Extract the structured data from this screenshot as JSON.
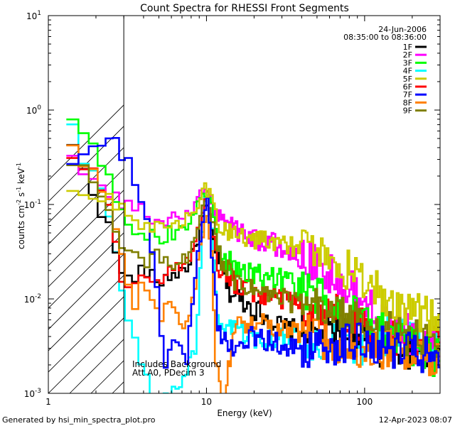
{
  "chart_data": {
    "type": "line",
    "title": "Count Spectra for RHESSI Front Segments",
    "xlabel": "Energy (keV)",
    "ylabel": "counts cm-2 s-1 keV-1",
    "x_scale": "log",
    "y_scale": "log",
    "xlim": [
      1,
      300
    ],
    "ylim": [
      0.001,
      10
    ],
    "x_tick_labels": [
      {
        "value": 1,
        "label": "1"
      },
      {
        "value": 10,
        "label": "10"
      },
      {
        "value": 100,
        "label": "100"
      }
    ],
    "y_tick_labels": [
      {
        "value": 0.001,
        "base": "10",
        "exp": "-3"
      },
      {
        "value": 0.01,
        "base": "10",
        "exp": "-2"
      },
      {
        "value": 0.1,
        "base": "10",
        "exp": "-1"
      },
      {
        "value": 1,
        "base": "10",
        "exp": "0"
      },
      {
        "value": 10,
        "base": "10",
        "exp": "1"
      }
    ],
    "date": "24-Jun-2006",
    "time_range": "08:35:00 to 08:36:00",
    "hatched_region_xlim": [
      1,
      3
    ],
    "annotation_lines": [
      "Includes Background",
      "Att A0, PDecim 3"
    ],
    "footer_left": "Generated by hsi_min_spectra_plot.pro",
    "footer_right": "12-Apr-2023 08:07",
    "series": [
      {
        "name": "1F",
        "color": "#000000"
      },
      {
        "name": "2F",
        "color": "#ff00ff"
      },
      {
        "name": "3F",
        "color": "#00ff00"
      },
      {
        "name": "4F",
        "color": "#00ffff"
      },
      {
        "name": "5F",
        "color": "#cccc00"
      },
      {
        "name": "6F",
        "color": "#ff0000"
      },
      {
        "name": "7F",
        "color": "#0000ff"
      },
      {
        "name": "8F",
        "color": "#ff8000"
      },
      {
        "name": "9F",
        "color": "#808000"
      }
    ],
    "anchors": {
      "1F": [
        [
          1.3,
          0.5
        ],
        [
          1.6,
          0.28
        ],
        [
          2.0,
          0.12
        ],
        [
          2.5,
          0.05
        ],
        [
          3.0,
          0.015
        ],
        [
          4.0,
          0.02
        ],
        [
          5.0,
          0.015
        ],
        [
          6.0,
          0.018
        ],
        [
          7.0,
          0.02
        ],
        [
          8.0,
          0.025
        ],
        [
          9.0,
          0.05
        ],
        [
          10.0,
          0.1
        ],
        [
          10.6,
          0.06
        ],
        [
          11.5,
          0.03
        ],
        [
          14,
          0.012
        ],
        [
          20,
          0.008
        ],
        [
          30,
          0.005
        ],
        [
          50,
          0.004
        ],
        [
          80,
          0.004
        ],
        [
          120,
          0.003
        ],
        [
          200,
          0.003
        ],
        [
          300,
          0.0025
        ]
      ],
      "2F": [
        [
          1.3,
          0.5
        ],
        [
          2.0,
          0.15
        ],
        [
          3.0,
          0.1
        ],
        [
          4.0,
          0.09
        ],
        [
          5.0,
          0.06
        ],
        [
          6.0,
          0.07
        ],
        [
          8.0,
          0.08
        ],
        [
          10.0,
          0.16
        ],
        [
          11.0,
          0.09
        ],
        [
          12.5,
          0.07
        ],
        [
          15,
          0.055
        ],
        [
          20,
          0.045
        ],
        [
          30,
          0.035
        ],
        [
          50,
          0.022
        ],
        [
          70,
          0.016
        ],
        [
          100,
          0.01
        ],
        [
          150,
          0.007
        ],
        [
          200,
          0.004
        ],
        [
          300,
          0.0025
        ]
      ],
      "3F": [
        [
          1.3,
          1.1
        ],
        [
          1.6,
          0.6
        ],
        [
          2.0,
          0.4
        ],
        [
          2.5,
          0.18
        ],
        [
          3.0,
          0.07
        ],
        [
          4.0,
          0.045
        ],
        [
          5.0,
          0.045
        ],
        [
          6.0,
          0.05
        ],
        [
          8.0,
          0.06
        ],
        [
          10.0,
          0.15
        ],
        [
          11.0,
          0.08
        ],
        [
          12,
          0.03
        ],
        [
          15,
          0.022
        ],
        [
          20,
          0.018
        ],
        [
          30,
          0.016
        ],
        [
          50,
          0.011
        ],
        [
          80,
          0.007
        ],
        [
          120,
          0.005
        ],
        [
          200,
          0.003
        ],
        [
          300,
          0.0022
        ]
      ],
      "4F": [
        [
          1.3,
          1.1
        ],
        [
          1.6,
          0.35
        ],
        [
          2.0,
          0.2
        ],
        [
          2.5,
          0.06
        ],
        [
          3.0,
          0.008
        ],
        [
          4.0,
          0.002
        ],
        [
          4.5,
          0.0008
        ],
        [
          5.5,
          0.0009
        ],
        [
          7,
          0.0012
        ],
        [
          8.5,
          0.003
        ],
        [
          10.0,
          0.18
        ],
        [
          10.8,
          0.05
        ],
        [
          12,
          0.004
        ],
        [
          15,
          0.005
        ],
        [
          20,
          0.004
        ],
        [
          40,
          0.004
        ],
        [
          80,
          0.003
        ],
        [
          150,
          0.004
        ],
        [
          300,
          0.0028
        ]
      ],
      "5F": [
        [
          1.3,
          0.12
        ],
        [
          2.0,
          0.12
        ],
        [
          3.0,
          0.1
        ],
        [
          4.0,
          0.06
        ],
        [
          6.0,
          0.06
        ],
        [
          8.0,
          0.07
        ],
        [
          10.0,
          0.15
        ],
        [
          11.0,
          0.1
        ],
        [
          12,
          0.055
        ],
        [
          15,
          0.05
        ],
        [
          20,
          0.045
        ],
        [
          30,
          0.04
        ],
        [
          50,
          0.03
        ],
        [
          80,
          0.02
        ],
        [
          120,
          0.012
        ],
        [
          200,
          0.008
        ],
        [
          300,
          0.006
        ]
      ],
      "6F": [
        [
          1.3,
          0.4
        ],
        [
          2.0,
          0.2
        ],
        [
          2.5,
          0.08
        ],
        [
          3.0,
          0.012
        ],
        [
          4.0,
          0.02
        ],
        [
          5.0,
          0.015
        ],
        [
          6.0,
          0.02
        ],
        [
          8.0,
          0.025
        ],
        [
          10.0,
          0.12
        ],
        [
          10.8,
          0.05
        ],
        [
          12,
          0.02
        ],
        [
          15,
          0.015
        ],
        [
          20,
          0.012
        ],
        [
          30,
          0.01
        ],
        [
          50,
          0.008
        ],
        [
          80,
          0.006
        ],
        [
          120,
          0.004
        ],
        [
          200,
          0.0035
        ],
        [
          300,
          0.003
        ]
      ],
      "7F": [
        [
          1.3,
          0.25
        ],
        [
          1.6,
          0.3
        ],
        [
          2.0,
          0.4
        ],
        [
          2.4,
          0.5
        ],
        [
          2.8,
          0.4
        ],
        [
          3.3,
          0.25
        ],
        [
          3.8,
          0.12
        ],
        [
          4.3,
          0.06
        ],
        [
          5.0,
          0.008
        ],
        [
          5.5,
          0.002
        ],
        [
          6.5,
          0.004
        ],
        [
          7.5,
          0.002
        ],
        [
          8.5,
          0.02
        ],
        [
          9.5,
          0.06
        ],
        [
          10.3,
          0.12
        ],
        [
          11,
          0.02
        ],
        [
          12,
          0.004
        ],
        [
          15,
          0.003
        ],
        [
          20,
          0.004
        ],
        [
          40,
          0.003
        ],
        [
          80,
          0.0035
        ],
        [
          150,
          0.003
        ],
        [
          300,
          0.0022
        ]
      ],
      "8F": [
        [
          1.3,
          0.45
        ],
        [
          2.0,
          0.2
        ],
        [
          2.5,
          0.1
        ],
        [
          3.0,
          0.02
        ],
        [
          3.5,
          0.008
        ],
        [
          4.0,
          0.015
        ],
        [
          5.0,
          0.006
        ],
        [
          6.0,
          0.01
        ],
        [
          7.0,
          0.004
        ],
        [
          8.0,
          0.008
        ],
        [
          9.5,
          0.05
        ],
        [
          10.0,
          0.1
        ],
        [
          10.8,
          0.03
        ],
        [
          11.5,
          0.002
        ],
        [
          13,
          0.0008
        ],
        [
          15,
          0.005
        ],
        [
          20,
          0.006
        ],
        [
          30,
          0.005
        ],
        [
          50,
          0.004
        ],
        [
          80,
          0.003
        ],
        [
          120,
          0.003
        ],
        [
          200,
          0.0025
        ],
        [
          300,
          0.0025
        ]
      ],
      "9F": [
        [
          1.3,
          0.35
        ],
        [
          2.0,
          0.18
        ],
        [
          3.0,
          0.03
        ],
        [
          4.0,
          0.025
        ],
        [
          5.0,
          0.03
        ],
        [
          6.0,
          0.02
        ],
        [
          8.0,
          0.03
        ],
        [
          10.0,
          0.13
        ],
        [
          11.0,
          0.06
        ],
        [
          12,
          0.03
        ],
        [
          15,
          0.015
        ],
        [
          20,
          0.012
        ],
        [
          30,
          0.01
        ],
        [
          50,
          0.008
        ],
        [
          80,
          0.006
        ],
        [
          120,
          0.005
        ],
        [
          200,
          0.004
        ],
        [
          300,
          0.003
        ]
      ]
    }
  }
}
